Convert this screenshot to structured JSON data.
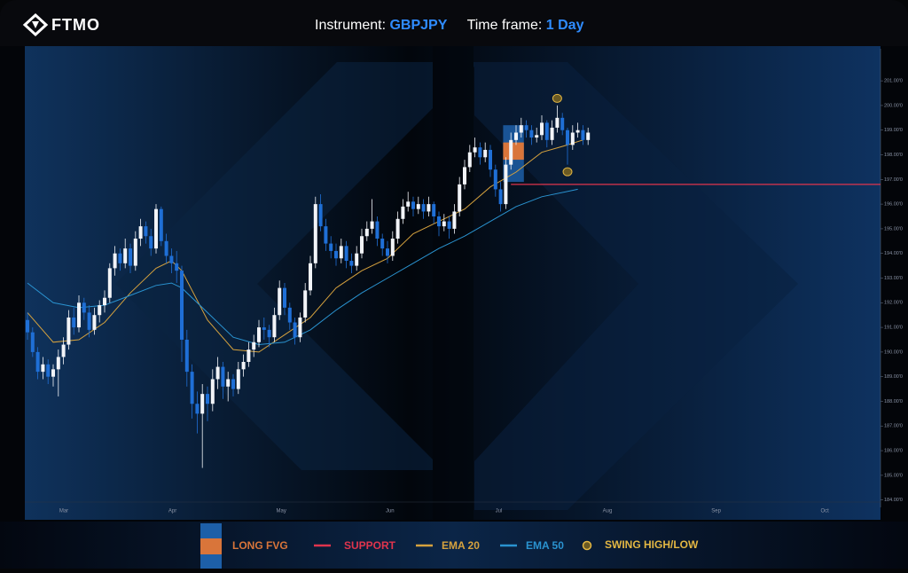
{
  "header": {
    "brand": "FTMO",
    "instrument_label": "Instrument:",
    "instrument": "GBPJPY",
    "timeframe_label": "Time frame:",
    "timeframe": "1 Day"
  },
  "chart_data": {
    "type": "candlestick",
    "months": [
      "Mar",
      "Apr",
      "May",
      "Jun",
      "Jul",
      "Aug",
      "Sep",
      "Oct"
    ],
    "ylim": [
      183.7,
      202.3
    ],
    "yticks": [
      {
        "value": 184,
        "label": "184.00'0"
      },
      {
        "value": 185,
        "label": "185.00'0"
      },
      {
        "value": 186,
        "label": "186.00'0"
      },
      {
        "value": 187,
        "label": "187.00'0"
      },
      {
        "value": 188,
        "label": "188.00'0"
      },
      {
        "value": 189,
        "label": "189.00'0"
      },
      {
        "value": 190,
        "label": "190.00'0"
      },
      {
        "value": 191,
        "label": "191.00'0"
      },
      {
        "value": 192,
        "label": "192.00'0"
      },
      {
        "value": 193,
        "label": "193.00'0"
      },
      {
        "value": 194,
        "label": "194.00'0"
      },
      {
        "value": 195,
        "label": "195.00'0"
      },
      {
        "value": 196,
        "label": "196.00'0"
      },
      {
        "value": 197,
        "label": "197.00'0"
      },
      {
        "value": 198,
        "label": "198.00'0"
      },
      {
        "value": 199,
        "label": "199.00'0"
      },
      {
        "value": 200,
        "label": "200.00'0"
      },
      {
        "value": 201,
        "label": "201.00'0"
      }
    ],
    "up_color": "#f2f4f8",
    "down_color": "#1f6fd6",
    "ohlc": [
      [
        191.3,
        191.6,
        190.5,
        190.8
      ],
      [
        190.8,
        191.0,
        189.8,
        190.0
      ],
      [
        190.0,
        190.2,
        188.9,
        189.2
      ],
      [
        189.2,
        189.8,
        188.9,
        189.5
      ],
      [
        189.5,
        189.7,
        188.7,
        189.0
      ],
      [
        189.0,
        189.5,
        188.6,
        189.3
      ],
      [
        189.3,
        190.1,
        188.2,
        189.8
      ],
      [
        189.8,
        190.6,
        189.5,
        190.3
      ],
      [
        190.3,
        191.7,
        190.1,
        191.4
      ],
      [
        191.4,
        191.8,
        190.7,
        191.0
      ],
      [
        191.0,
        192.3,
        190.8,
        192.0
      ],
      [
        192.0,
        192.2,
        191.3,
        191.6
      ],
      [
        191.6,
        191.9,
        190.6,
        190.9
      ],
      [
        190.9,
        191.8,
        190.7,
        191.5
      ],
      [
        191.5,
        192.1,
        191.2,
        191.9
      ],
      [
        191.9,
        192.5,
        191.6,
        192.2
      ],
      [
        192.2,
        193.6,
        192.0,
        193.4
      ],
      [
        193.4,
        194.3,
        193.1,
        194.0
      ],
      [
        194.0,
        194.2,
        193.3,
        193.6
      ],
      [
        193.6,
        194.6,
        193.4,
        194.2
      ],
      [
        194.2,
        194.4,
        193.2,
        193.5
      ],
      [
        193.5,
        194.9,
        193.3,
        194.6
      ],
      [
        194.6,
        195.4,
        194.3,
        195.1
      ],
      [
        195.1,
        195.3,
        194.4,
        194.7
      ],
      [
        194.7,
        195.0,
        193.9,
        194.2
      ],
      [
        194.2,
        196.0,
        194.0,
        195.8
      ],
      [
        195.8,
        195.9,
        194.3,
        194.5
      ],
      [
        194.5,
        194.8,
        193.6,
        193.9
      ],
      [
        193.9,
        194.2,
        193.2,
        193.6
      ],
      [
        193.6,
        194.1,
        192.8,
        193.3
      ],
      [
        193.3,
        193.5,
        189.6,
        190.5
      ],
      [
        190.5,
        190.9,
        188.6,
        189.2
      ],
      [
        189.2,
        189.5,
        187.3,
        187.9
      ],
      [
        187.9,
        188.4,
        186.7,
        187.5
      ],
      [
        187.5,
        188.7,
        185.3,
        188.3
      ],
      [
        188.3,
        188.6,
        187.2,
        187.9
      ],
      [
        187.9,
        189.3,
        187.6,
        188.9
      ],
      [
        188.9,
        189.8,
        188.5,
        189.4
      ],
      [
        189.4,
        189.6,
        188.1,
        188.6
      ],
      [
        188.6,
        189.2,
        188.0,
        188.9
      ],
      [
        188.9,
        189.1,
        188.2,
        188.5
      ],
      [
        188.5,
        189.6,
        188.3,
        189.3
      ],
      [
        189.3,
        189.9,
        189.0,
        189.6
      ],
      [
        189.6,
        190.4,
        189.4,
        190.1
      ],
      [
        190.1,
        190.7,
        189.8,
        190.4
      ],
      [
        190.4,
        191.3,
        190.2,
        191.0
      ],
      [
        191.0,
        191.4,
        190.5,
        190.9
      ],
      [
        190.9,
        191.1,
        190.2,
        190.6
      ],
      [
        190.6,
        191.8,
        190.4,
        191.5
      ],
      [
        191.5,
        192.9,
        191.3,
        192.6
      ],
      [
        192.6,
        192.8,
        191.5,
        191.8
      ],
      [
        191.8,
        192.0,
        190.9,
        191.2
      ],
      [
        191.2,
        191.4,
        190.3,
        190.6
      ],
      [
        190.6,
        191.6,
        190.4,
        191.4
      ],
      [
        191.4,
        192.8,
        191.2,
        192.5
      ],
      [
        192.5,
        193.9,
        192.3,
        193.6
      ],
      [
        193.6,
        196.3,
        193.4,
        196.0
      ],
      [
        196.0,
        196.4,
        194.9,
        195.1
      ],
      [
        195.1,
        195.4,
        194.1,
        194.4
      ],
      [
        194.4,
        194.7,
        193.8,
        194.1
      ],
      [
        194.1,
        194.4,
        193.5,
        193.8
      ],
      [
        193.8,
        194.6,
        193.6,
        194.3
      ],
      [
        194.3,
        194.5,
        193.4,
        193.7
      ],
      [
        193.7,
        194.0,
        193.2,
        193.5
      ],
      [
        193.5,
        194.3,
        193.3,
        194.0
      ],
      [
        194.0,
        195.0,
        193.8,
        194.7
      ],
      [
        194.7,
        195.3,
        194.5,
        195.0
      ],
      [
        195.0,
        196.2,
        194.8,
        195.3
      ],
      [
        195.3,
        195.5,
        194.3,
        194.6
      ],
      [
        194.6,
        194.8,
        193.9,
        194.2
      ],
      [
        194.2,
        194.5,
        193.6,
        193.9
      ],
      [
        193.9,
        194.9,
        193.7,
        194.6
      ],
      [
        194.6,
        195.7,
        194.4,
        195.4
      ],
      [
        195.4,
        196.2,
        195.2,
        195.9
      ],
      [
        195.9,
        196.5,
        195.7,
        196.1
      ],
      [
        196.1,
        196.3,
        195.5,
        195.8
      ],
      [
        195.8,
        196.3,
        195.6,
        196.0
      ],
      [
        196.0,
        196.2,
        195.4,
        195.7
      ],
      [
        195.7,
        196.3,
        195.5,
        196.0
      ],
      [
        196.0,
        196.1,
        195.2,
        195.5
      ],
      [
        195.5,
        195.7,
        194.7,
        195.1
      ],
      [
        195.1,
        195.6,
        194.9,
        195.3
      ],
      [
        195.3,
        195.5,
        194.6,
        195.0
      ],
      [
        195.0,
        196.0,
        194.8,
        195.7
      ],
      [
        195.7,
        197.1,
        195.5,
        196.8
      ],
      [
        196.8,
        197.8,
        196.6,
        197.5
      ],
      [
        197.5,
        198.4,
        197.3,
        198.1
      ],
      [
        198.1,
        198.7,
        197.9,
        198.3
      ],
      [
        198.3,
        198.5,
        197.6,
        197.9
      ],
      [
        197.9,
        198.5,
        197.7,
        198.2
      ],
      [
        198.2,
        198.4,
        197.1,
        197.4
      ],
      [
        197.4,
        197.6,
        196.3,
        196.6
      ],
      [
        196.6,
        196.9,
        195.7,
        196.0
      ],
      [
        196.0,
        197.9,
        195.8,
        197.6
      ],
      [
        197.6,
        198.9,
        197.4,
        198.6
      ],
      [
        198.6,
        199.2,
        198.4,
        198.9
      ],
      [
        198.9,
        199.5,
        198.7,
        199.2
      ],
      [
        199.2,
        199.4,
        198.7,
        199.0
      ],
      [
        199.0,
        199.2,
        198.4,
        198.7
      ],
      [
        198.7,
        199.1,
        198.5,
        198.8
      ],
      [
        198.8,
        199.6,
        198.6,
        199.3
      ],
      [
        199.3,
        199.4,
        198.3,
        198.6
      ],
      [
        198.6,
        199.4,
        198.4,
        199.1
      ],
      [
        199.1,
        200.0,
        198.9,
        199.5
      ],
      [
        199.5,
        199.7,
        198.8,
        199.0
      ],
      [
        199.0,
        199.1,
        197.6,
        198.4
      ],
      [
        198.4,
        199.2,
        198.2,
        198.9
      ],
      [
        198.9,
        199.3,
        198.7,
        199.0
      ],
      [
        199.0,
        199.2,
        198.4,
        198.6
      ],
      [
        198.6,
        199.1,
        198.4,
        198.9
      ]
    ],
    "series": [
      {
        "name": "EMA 20",
        "color": "#d6a23e",
        "x": [
          0,
          5,
          10,
          15,
          20,
          25,
          28,
          30,
          35,
          40,
          45,
          50,
          55,
          60,
          65,
          70,
          75,
          80,
          85,
          90,
          95,
          100,
          105,
          108
        ],
        "values": [
          191.6,
          190.4,
          190.5,
          191.2,
          192.4,
          193.4,
          193.7,
          193.3,
          191.3,
          190.1,
          190.0,
          190.7,
          191.4,
          192.6,
          193.3,
          193.8,
          194.8,
          195.3,
          195.8,
          196.7,
          197.3,
          198.1,
          198.4,
          198.6
        ]
      },
      {
        "name": "EMA 50",
        "color": "#2a93d0",
        "x": [
          0,
          5,
          10,
          15,
          20,
          25,
          28,
          30,
          35,
          40,
          45,
          50,
          55,
          60,
          65,
          70,
          75,
          80,
          85,
          90,
          95,
          100,
          107
        ],
        "values": [
          192.8,
          192.0,
          191.8,
          191.9,
          192.3,
          192.7,
          192.8,
          192.6,
          191.6,
          190.6,
          190.3,
          190.4,
          190.9,
          191.7,
          192.4,
          193.0,
          193.6,
          194.2,
          194.7,
          195.3,
          195.9,
          196.3,
          196.6
        ]
      }
    ],
    "fvg": {
      "name": "LONG FVG",
      "x": [
        93,
        96
      ],
      "range": [
        196.9,
        199.2
      ],
      "gap": [
        197.8,
        198.5
      ],
      "color": "#1d5fa8",
      "gap_color": "#d9753a"
    },
    "support": {
      "name": "SUPPORT",
      "value": 196.8,
      "start": 94,
      "color": "#e0344d"
    },
    "swings": {
      "name": "SWING HIGH/LOW",
      "x": [
        103,
        105
      ],
      "values": [
        200.0,
        197.6
      ],
      "color": "#e3b743"
    }
  }
}
